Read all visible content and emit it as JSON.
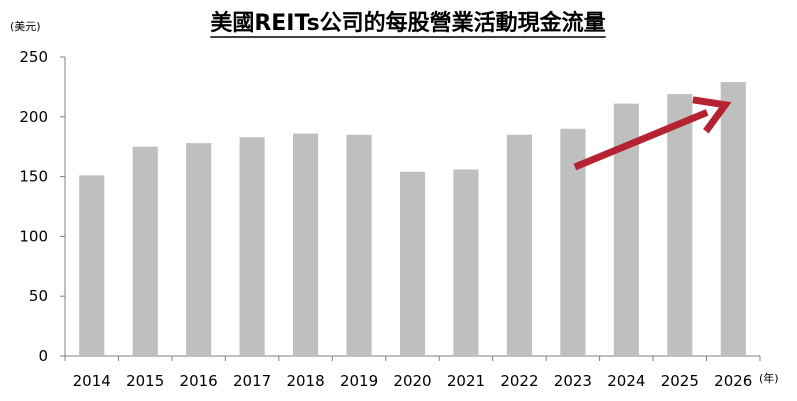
{
  "chart_data": {
    "type": "bar",
    "title": "美國REITs公司的每股營業活動現金流量",
    "ylabel": "(美元)",
    "xlabel": "(年)",
    "ylim": [
      0,
      250
    ],
    "yticks": [
      0,
      50,
      100,
      150,
      200,
      250
    ],
    "categories": [
      "2014",
      "2015",
      "2016",
      "2017",
      "2018",
      "2019",
      "2020",
      "2021",
      "2022",
      "2023",
      "2024",
      "2025",
      "2026"
    ],
    "values": [
      151,
      175,
      178,
      183,
      186,
      185,
      154,
      156,
      185,
      190,
      211,
      219,
      229
    ],
    "grid": false,
    "legend": "none",
    "annotation": {
      "type": "trend-arrow",
      "from_category": "2023",
      "to_category": "2026",
      "from_value": 158,
      "to_value": 210
    },
    "colors": {
      "bar": "#bfbfbf",
      "arrow": "#b52332",
      "axis": "#808080",
      "text": "#000000"
    }
  }
}
